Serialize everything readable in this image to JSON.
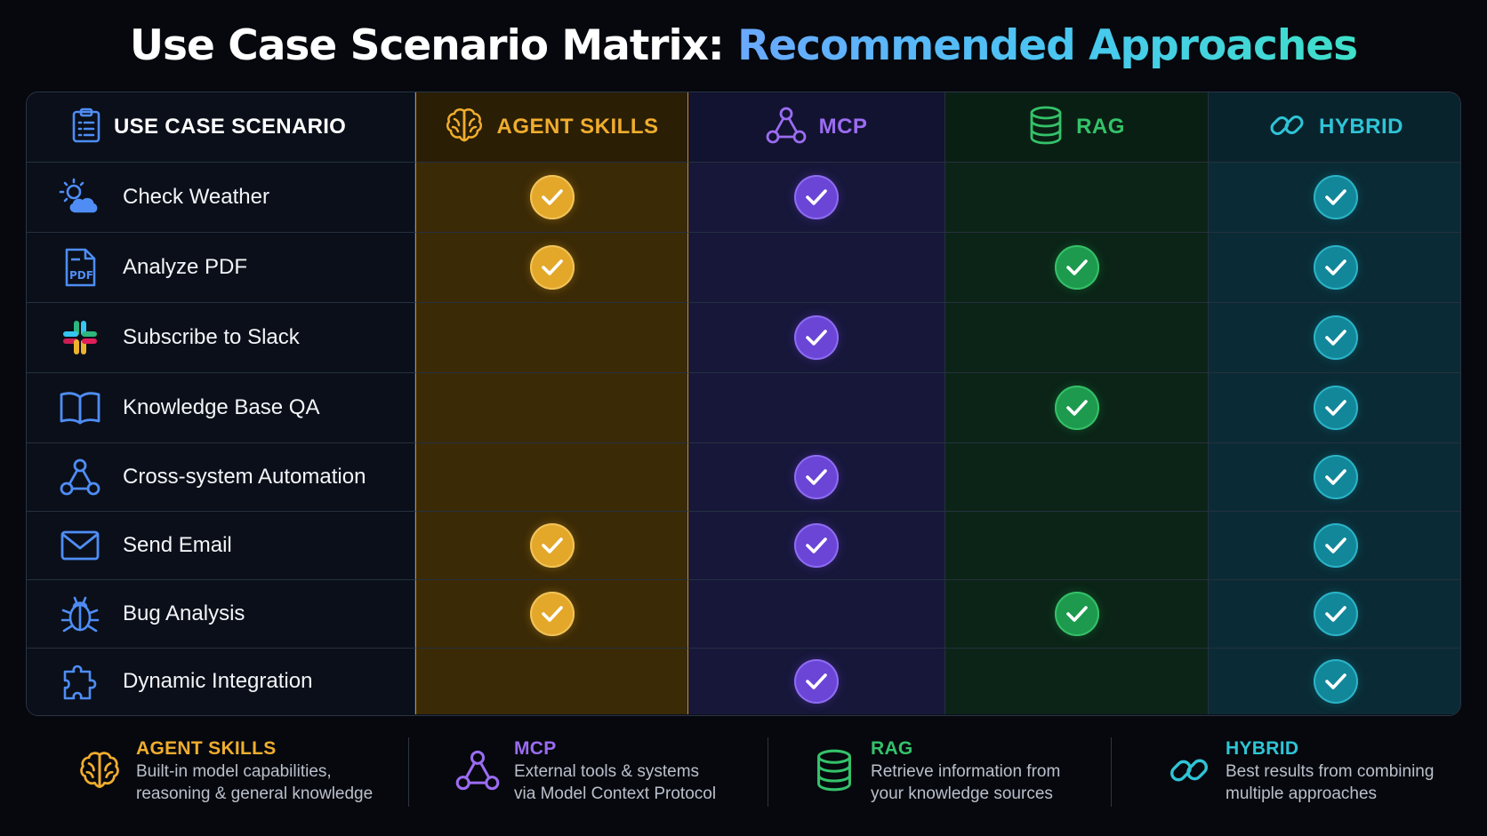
{
  "title": {
    "main": "Use Case Scenario Matrix:",
    "accent": "Recommended Approaches"
  },
  "colors": {
    "agent_skills": "#f0ad2e",
    "mcp": "#9b6cf2",
    "rag": "#34c26a",
    "hybrid": "#2fc4d6"
  },
  "header": {
    "scenario": {
      "label": "USE CASE SCENARIO",
      "icon": "clipboard-icon"
    },
    "agent_skills": {
      "label": "AGENT SKILLS",
      "icon": "brain-icon"
    },
    "mcp": {
      "label": "MCP",
      "icon": "network-icon"
    },
    "rag": {
      "label": "RAG",
      "icon": "database-icon"
    },
    "hybrid": {
      "label": "HYBRID",
      "icon": "link-icon"
    }
  },
  "rows": [
    {
      "label": "Check Weather",
      "icon": "weather-icon",
      "agent_skills": true,
      "mcp": true,
      "rag": false,
      "hybrid": true
    },
    {
      "label": "Analyze PDF",
      "icon": "pdf-icon",
      "agent_skills": true,
      "mcp": false,
      "rag": true,
      "hybrid": true
    },
    {
      "label": "Subscribe to Slack",
      "icon": "slack-icon",
      "agent_skills": false,
      "mcp": true,
      "rag": false,
      "hybrid": true
    },
    {
      "label": "Knowledge Base QA",
      "icon": "book-icon",
      "agent_skills": false,
      "mcp": false,
      "rag": true,
      "hybrid": true
    },
    {
      "label": "Cross-system Automation",
      "icon": "network-icon",
      "agent_skills": false,
      "mcp": true,
      "rag": false,
      "hybrid": true
    },
    {
      "label": "Send Email",
      "icon": "envelope-icon",
      "agent_skills": true,
      "mcp": true,
      "rag": false,
      "hybrid": true
    },
    {
      "label": "Bug Analysis",
      "icon": "bug-icon",
      "agent_skills": true,
      "mcp": false,
      "rag": true,
      "hybrid": true
    },
    {
      "label": "Dynamic Integration",
      "icon": "puzzle-icon",
      "agent_skills": false,
      "mcp": true,
      "rag": false,
      "hybrid": true
    }
  ],
  "legend": {
    "agent_skills": {
      "title": "AGENT SKILLS",
      "line1": "Built-in model capabilities,",
      "line2": "reasoning & general knowledge"
    },
    "mcp": {
      "title": "MCP",
      "line1": "External tools & systems",
      "line2": "via Model Context Protocol"
    },
    "rag": {
      "title": "RAG",
      "line1": "Retrieve information from",
      "line2": "your knowledge sources"
    },
    "hybrid": {
      "title": "HYBRID",
      "line1": "Best results from combining",
      "line2": "multiple approaches"
    }
  }
}
